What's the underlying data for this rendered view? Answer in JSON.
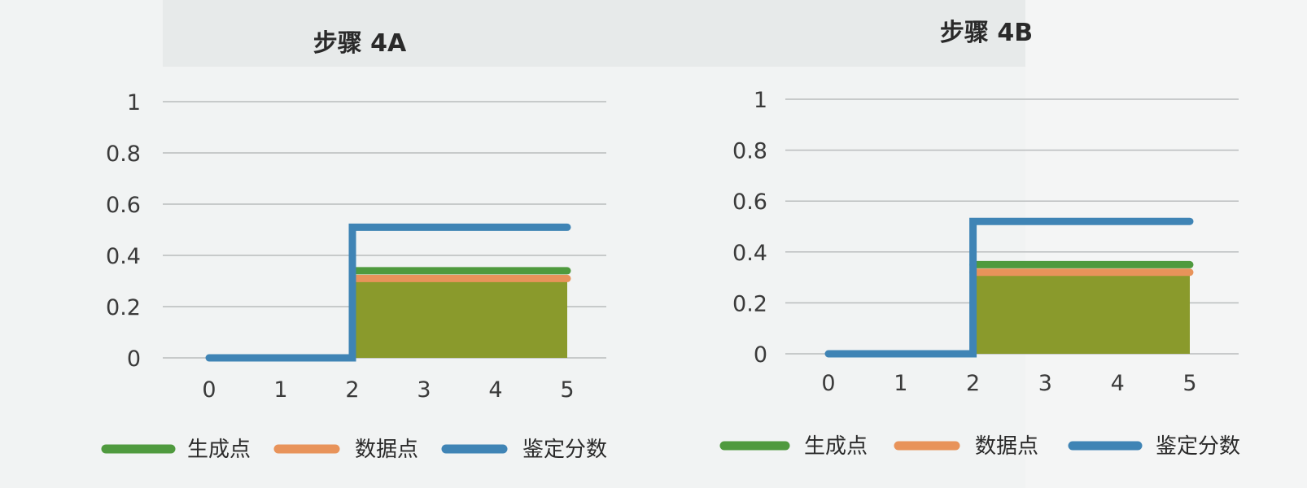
{
  "chart_data": [
    {
      "type": "line",
      "title": "步骤 4A",
      "xlabel": "",
      "ylabel": "",
      "x_ticks": [
        "0",
        "1",
        "2",
        "3",
        "4",
        "5"
      ],
      "y_ticks": [
        "0",
        "0.2",
        "0.4",
        "0.6",
        "0.8",
        "1"
      ],
      "xlim": [
        0,
        5
      ],
      "ylim": [
        0,
        1
      ],
      "grid": true,
      "legend_position": "bottom",
      "series": [
        {
          "name": "生成点",
          "color": "#4f9a3e",
          "step": true,
          "points": [
            [
              2,
              0.34
            ],
            [
              5,
              0.34
            ]
          ]
        },
        {
          "name": "数据点",
          "color": "#e8935a",
          "step": true,
          "points": [
            [
              2,
              0.31
            ],
            [
              5,
              0.31
            ]
          ]
        },
        {
          "name": "鉴定分数",
          "color": "#3f84b5",
          "step": true,
          "points": [
            [
              0,
              0
            ],
            [
              2,
              0
            ],
            [
              2,
              0.51
            ],
            [
              5,
              0.51
            ]
          ]
        }
      ],
      "shaded_region": {
        "x_range": [
          2,
          5
        ],
        "y_range": [
          0,
          0.31
        ],
        "color": "#8a9a2c"
      }
    },
    {
      "type": "line",
      "title": "步骤 4B",
      "xlabel": "",
      "ylabel": "",
      "x_ticks": [
        "0",
        "1",
        "2",
        "3",
        "4",
        "5"
      ],
      "y_ticks": [
        "0",
        "0.2",
        "0.4",
        "0.6",
        "0.8",
        "1"
      ],
      "xlim": [
        0,
        5
      ],
      "ylim": [
        0,
        1
      ],
      "grid": true,
      "legend_position": "bottom",
      "series": [
        {
          "name": "生成点",
          "color": "#4f9a3e",
          "step": true,
          "points": [
            [
              2,
              0.35
            ],
            [
              5,
              0.35
            ]
          ]
        },
        {
          "name": "数据点",
          "color": "#e8935a",
          "step": true,
          "points": [
            [
              2,
              0.32
            ],
            [
              5,
              0.32
            ]
          ]
        },
        {
          "name": "鉴定分数",
          "color": "#3f84b5",
          "step": true,
          "points": [
            [
              0,
              0
            ],
            [
              2,
              0
            ],
            [
              2,
              0.52
            ],
            [
              5,
              0.52
            ]
          ]
        }
      ],
      "shaded_region": {
        "x_range": [
          2,
          5
        ],
        "y_range": [
          0,
          0.32
        ],
        "color": "#8a9a2c"
      }
    }
  ]
}
